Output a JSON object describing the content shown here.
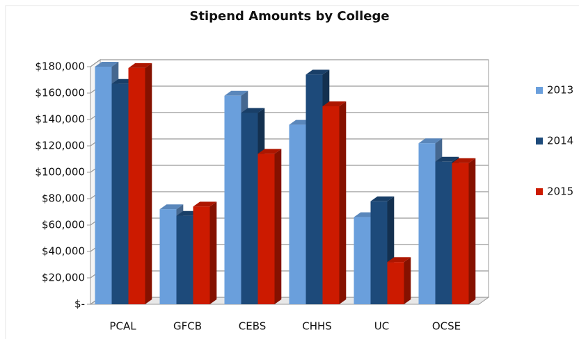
{
  "chart_data": {
    "type": "bar3d",
    "title": "Stipend Amounts by College",
    "categories": [
      "PCAL",
      "GFCB",
      "CEBS",
      "CHHS",
      "UC",
      "OCSE"
    ],
    "series": [
      {
        "name": "2013",
        "color": "#6a9fdc",
        "values": [
          180000,
          72000,
          158000,
          136000,
          66000,
          122000
        ]
      },
      {
        "name": "2014",
        "color": "#1d4a7a",
        "values": [
          167000,
          67000,
          145000,
          174000,
          78000,
          108000
        ]
      },
      {
        "name": "2015",
        "color": "#cc1a00",
        "values": [
          179000,
          74000,
          114000,
          150000,
          32000,
          107000
        ]
      }
    ],
    "ylim": [
      0,
      180000
    ],
    "yticks": [
      {
        "value": 0,
        "label": "$-"
      },
      {
        "value": 20000,
        "label": "$20,000"
      },
      {
        "value": 40000,
        "label": "$40,000"
      },
      {
        "value": 60000,
        "label": "$60,000"
      },
      {
        "value": 80000,
        "label": "$80,000"
      },
      {
        "value": 100000,
        "label": "$100,000"
      },
      {
        "value": 120000,
        "label": "$120,000"
      },
      {
        "value": 140000,
        "label": "$140,000"
      },
      {
        "value": 160000,
        "label": "$160,000"
      },
      {
        "value": 180000,
        "label": "$180,000"
      }
    ],
    "grid": true,
    "legend": "right"
  }
}
